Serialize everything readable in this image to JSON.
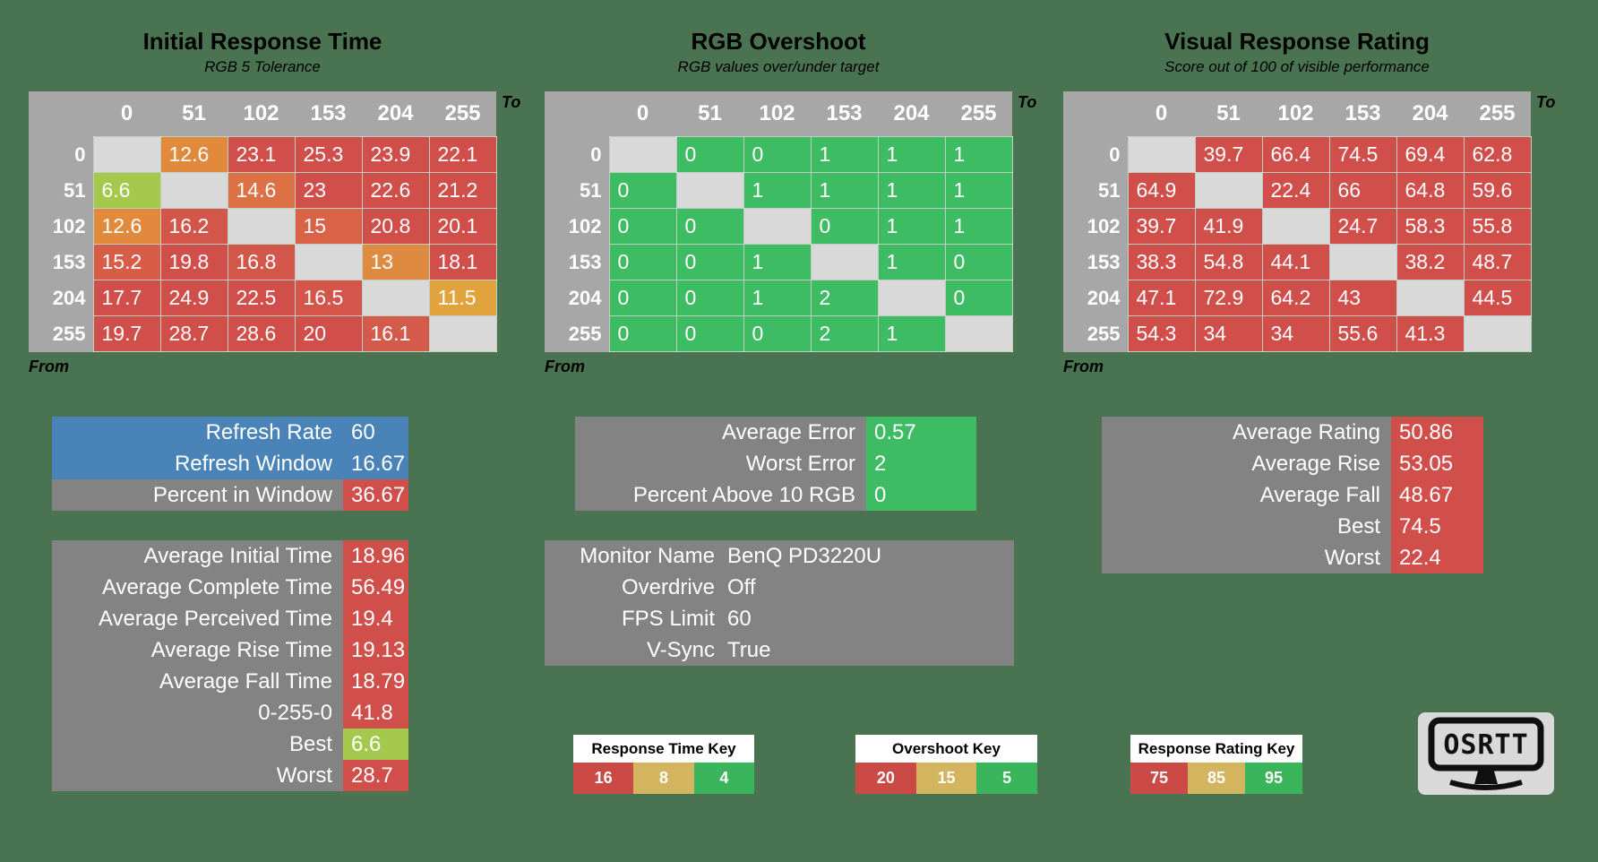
{
  "colors": {
    "background": "#4a7351",
    "header_gray": "#a7a7a7",
    "diagonal_gray": "#d9d9d9",
    "panel_gray": "#838383",
    "panel_blue": "#4a83b7",
    "bad_red": "#d14f4a",
    "good_green": "#3ebc63",
    "best_green": "#a4c94d",
    "mid_tan": "#d3b45f"
  },
  "chart_data": [
    {
      "type": "heatmap",
      "title": "Initial Response Time",
      "subtitle": "RGB 5 Tolerance",
      "x_label": "To",
      "y_label": "From",
      "columns": [
        "0",
        "51",
        "102",
        "153",
        "204",
        "255"
      ],
      "rows": [
        "0",
        "51",
        "102",
        "153",
        "204",
        "255"
      ],
      "values": [
        [
          null,
          12.6,
          23.1,
          25.3,
          23.9,
          22.1
        ],
        [
          6.6,
          null,
          14.6,
          23,
          22.6,
          21.2
        ],
        [
          12.6,
          16.2,
          null,
          15,
          20.8,
          20.1
        ],
        [
          15.2,
          19.8,
          16.8,
          null,
          13,
          18.1
        ],
        [
          17.7,
          24.9,
          22.5,
          16.5,
          null,
          11.5
        ],
        [
          19.7,
          28.7,
          28.6,
          20,
          16.1,
          null
        ]
      ],
      "colors": [
        [
          null,
          "#e18a3e",
          "#d14f4a",
          "#d14f4a",
          "#d14f4a",
          "#d14f4a"
        ],
        [
          "#a4c94d",
          null,
          "#db7144",
          "#d14f4a",
          "#d14f4a",
          "#d14f4a"
        ],
        [
          "#e18a3e",
          "#d3564a",
          null,
          "#d86347",
          "#d14f4a",
          "#d14f4a"
        ],
        [
          "#d75d48",
          "#d14f4a",
          "#d3564a",
          null,
          "#df8a41",
          "#d14f4a"
        ],
        [
          "#d14f4a",
          "#d14f4a",
          "#d14f4a",
          "#d45549",
          null,
          "#e0a33d"
        ],
        [
          "#d14f4a",
          "#d14f4a",
          "#d14f4a",
          "#d14f4a",
          "#d45a4b",
          null
        ]
      ]
    },
    {
      "type": "heatmap",
      "title": "RGB Overshoot",
      "subtitle": "RGB values over/under target",
      "x_label": "To",
      "y_label": "From",
      "cell_color": "#3ebc63",
      "columns": [
        "0",
        "51",
        "102",
        "153",
        "204",
        "255"
      ],
      "rows": [
        "0",
        "51",
        "102",
        "153",
        "204",
        "255"
      ],
      "values": [
        [
          null,
          0,
          0,
          1,
          1,
          1
        ],
        [
          0,
          null,
          1,
          1,
          1,
          1
        ],
        [
          0,
          0,
          null,
          0,
          1,
          1
        ],
        [
          0,
          0,
          1,
          null,
          1,
          0
        ],
        [
          0,
          0,
          1,
          2,
          null,
          0
        ],
        [
          0,
          0,
          0,
          2,
          1,
          null
        ]
      ]
    },
    {
      "type": "heatmap",
      "title": "Visual Response Rating",
      "subtitle": "Score out of 100 of visible performance",
      "x_label": "To",
      "y_label": "From",
      "cell_color": "#d14f4a",
      "columns": [
        "0",
        "51",
        "102",
        "153",
        "204",
        "255"
      ],
      "rows": [
        "0",
        "51",
        "102",
        "153",
        "204",
        "255"
      ],
      "values": [
        [
          null,
          39.7,
          66.4,
          74.5,
          69.4,
          62.8
        ],
        [
          64.9,
          null,
          22.4,
          66,
          64.8,
          59.6
        ],
        [
          39.7,
          41.9,
          null,
          24.7,
          58.3,
          55.8
        ],
        [
          38.3,
          54.8,
          44.1,
          null,
          38.2,
          48.7
        ],
        [
          47.1,
          72.9,
          64.2,
          43,
          null,
          44.5
        ],
        [
          54.3,
          34,
          34,
          55.6,
          41.3,
          null
        ]
      ]
    }
  ],
  "panels": {
    "refresh": {
      "rows": [
        {
          "label": "Refresh Rate",
          "value": "60",
          "bg": "#4a83b7"
        },
        {
          "label": "Refresh Window",
          "value": "16.67",
          "bg": "#4a83b7"
        },
        {
          "label": "Percent in Window",
          "value": "36.67",
          "bg": "#838383",
          "vbg": "#d14f4a"
        }
      ]
    },
    "times": {
      "rows": [
        {
          "label": "Average Initial Time",
          "value": "18.96",
          "bg": "#838383",
          "vbg": "#d14f4a"
        },
        {
          "label": "Average Complete Time",
          "value": "56.49",
          "bg": "#838383",
          "vbg": "#d14f4a"
        },
        {
          "label": "Average Perceived Time",
          "value": "19.4",
          "bg": "#838383",
          "vbg": "#d14f4a"
        },
        {
          "label": "Average Rise Time",
          "value": "19.13",
          "bg": "#838383",
          "vbg": "#d14f4a"
        },
        {
          "label": "Average Fall Time",
          "value": "18.79",
          "bg": "#838383",
          "vbg": "#d14f4a"
        },
        {
          "label": "0-255-0",
          "value": "41.8",
          "bg": "#838383",
          "vbg": "#d14f4a"
        },
        {
          "label": "Best",
          "value": "6.6",
          "bg": "#838383",
          "vbg": "#a4c94d"
        },
        {
          "label": "Worst",
          "value": "28.7",
          "bg": "#838383",
          "vbg": "#d14f4a"
        }
      ]
    },
    "overshoot": {
      "rows": [
        {
          "label": "Average Error",
          "value": "0.57",
          "bg": "#838383",
          "vbg": "#3ebc63"
        },
        {
          "label": "Worst Error",
          "value": "2",
          "bg": "#838383",
          "vbg": "#3ebc63"
        },
        {
          "label": "Percent Above 10 RGB",
          "value": "0",
          "bg": "#838383",
          "vbg": "#3ebc63"
        }
      ]
    },
    "monitor": {
      "rows": [
        {
          "label": "Monitor Name",
          "value": "BenQ PD3220U",
          "bg": "#838383"
        },
        {
          "label": "Overdrive",
          "value": "Off",
          "bg": "#838383"
        },
        {
          "label": "FPS Limit",
          "value": "60",
          "bg": "#838383"
        },
        {
          "label": "V-Sync",
          "value": "True",
          "bg": "#838383"
        }
      ]
    },
    "rating": {
      "rows": [
        {
          "label": "Average Rating",
          "value": "50.86",
          "bg": "#838383",
          "vbg": "#d14f4a"
        },
        {
          "label": "Average Rise",
          "value": "53.05",
          "bg": "#838383",
          "vbg": "#d14f4a"
        },
        {
          "label": "Average Fall",
          "value": "48.67",
          "bg": "#838383",
          "vbg": "#d14f4a"
        },
        {
          "label": "Best",
          "value": "74.5",
          "bg": "#838383",
          "vbg": "#d14f4a"
        },
        {
          "label": "Worst",
          "value": "22.4",
          "bg": "#838383",
          "vbg": "#d14f4a"
        }
      ]
    }
  },
  "keys": [
    {
      "title": "Response Time Key",
      "stops": [
        {
          "value": "16",
          "color": "#cc4a45"
        },
        {
          "value": "8",
          "color": "#d3b45f"
        },
        {
          "value": "4",
          "color": "#3ab55c"
        }
      ]
    },
    {
      "title": "Overshoot Key",
      "stops": [
        {
          "value": "20",
          "color": "#cc4a45"
        },
        {
          "value": "15",
          "color": "#d3b45f"
        },
        {
          "value": "5",
          "color": "#3ab55c"
        }
      ]
    },
    {
      "title": "Response Rating Key",
      "stops": [
        {
          "value": "75",
          "color": "#cc4a45"
        },
        {
          "value": "85",
          "color": "#d3b45f"
        },
        {
          "value": "95",
          "color": "#3ab55c"
        }
      ]
    }
  ],
  "logo": {
    "text": "OSRTT"
  }
}
